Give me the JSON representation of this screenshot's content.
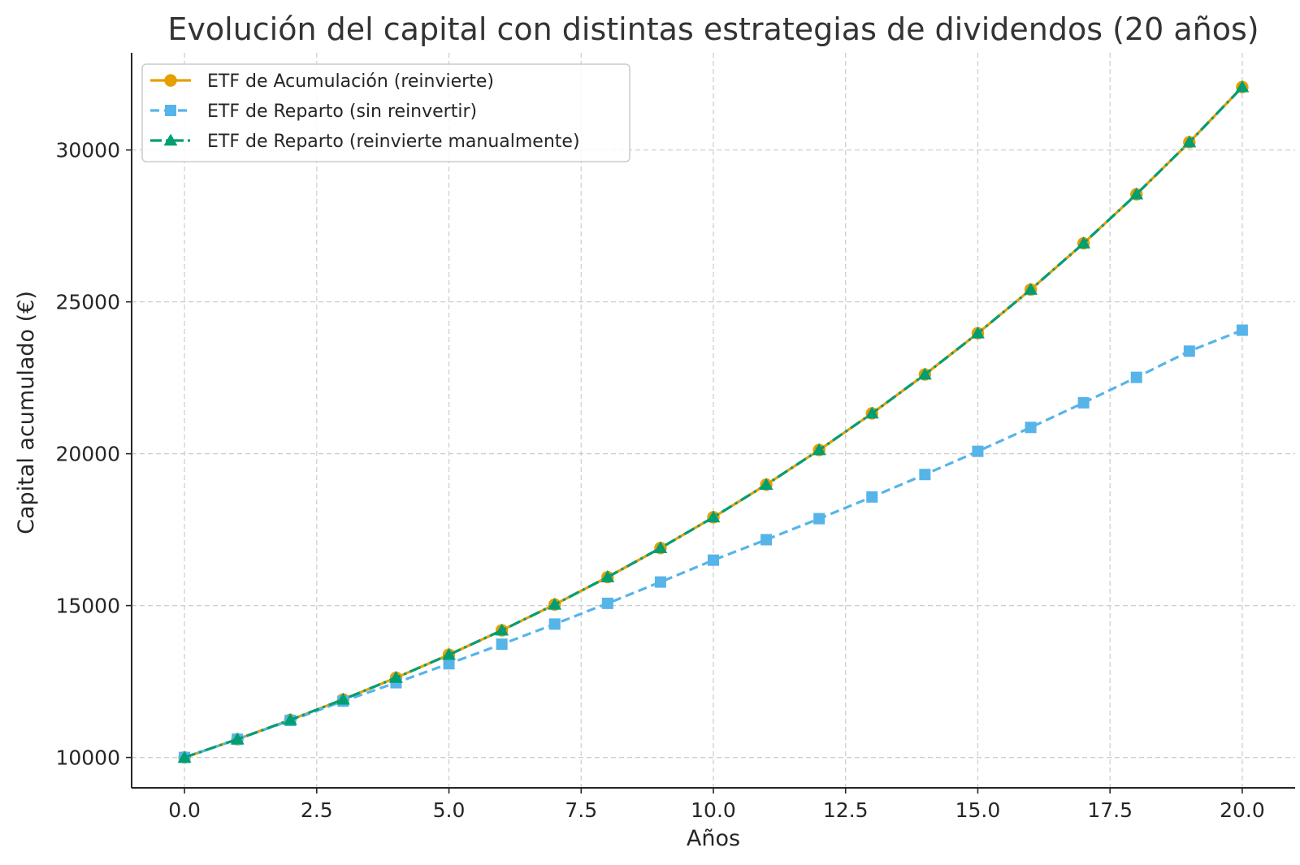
{
  "chart_data": {
    "type": "line",
    "title": "Evolución del capital con distintas estrategias de dividendos (20 años)",
    "xlabel": "Años",
    "ylabel": "Capital acumulado (€)",
    "xlim": [
      -1,
      21
    ],
    "ylim": [
      9000,
      33200
    ],
    "x_ticks": [
      0.0,
      2.5,
      5.0,
      7.5,
      10.0,
      12.5,
      15.0,
      17.5,
      20.0
    ],
    "x_tick_labels": [
      "0.0",
      "2.5",
      "5.0",
      "7.5",
      "10.0",
      "12.5",
      "15.0",
      "17.5",
      "20.0"
    ],
    "y_ticks": [
      10000,
      15000,
      20000,
      25000,
      30000
    ],
    "y_tick_labels": [
      "10000",
      "15000",
      "20000",
      "25000",
      "30000"
    ],
    "grid": true,
    "legend_position": "top-left",
    "x": [
      0,
      1,
      2,
      3,
      4,
      5,
      6,
      7,
      8,
      9,
      10,
      11,
      12,
      13,
      14,
      15,
      16,
      17,
      18,
      19,
      20
    ],
    "series": [
      {
        "name": "ETF de Acumulación (reinvierte)",
        "color": "#E69F00",
        "line_style": "solid",
        "marker": "circle",
        "values": [
          10000,
          10600,
          11236,
          11910,
          12625,
          13382,
          14185,
          15036,
          15938,
          16895,
          17908,
          18983,
          20122,
          21329,
          22609,
          23966,
          25404,
          26928,
          28543,
          30256,
          32071
        ]
      },
      {
        "name": "ETF de Reparto (sin reinvertir)",
        "color": "#56B4E9",
        "line_style": "dashed",
        "marker": "square",
        "values": [
          10000,
          10600,
          11218,
          11855,
          12461,
          13085,
          13729,
          14392,
          15074,
          15776,
          16497,
          17170,
          17862,
          18577,
          19316,
          20079,
          20866,
          21677,
          22514,
          23377,
          24067
        ]
      },
      {
        "name": "ETF de Reparto (reinvierte manualmente)",
        "color": "#009E73",
        "line_style": "dashdot",
        "marker": "triangle",
        "values": [
          10000,
          10600,
          11236,
          11910,
          12625,
          13382,
          14185,
          15036,
          15938,
          16895,
          17908,
          18983,
          20122,
          21329,
          22609,
          23966,
          25404,
          26928,
          28543,
          30256,
          32071
        ]
      }
    ]
  }
}
